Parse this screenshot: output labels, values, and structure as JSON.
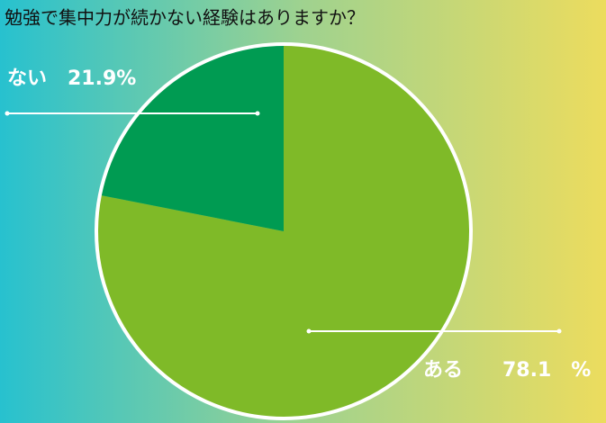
{
  "chart_data": {
    "type": "pie",
    "title": "勉強で集中力が続かない経験はありますか？",
    "categories": [
      "ある",
      "ない"
    ],
    "values": [
      78.1,
      21.9
    ],
    "value_labels": [
      "78.1　%",
      "21.9%"
    ],
    "colors": [
      "#7fba28",
      "#009b52"
    ]
  }
}
